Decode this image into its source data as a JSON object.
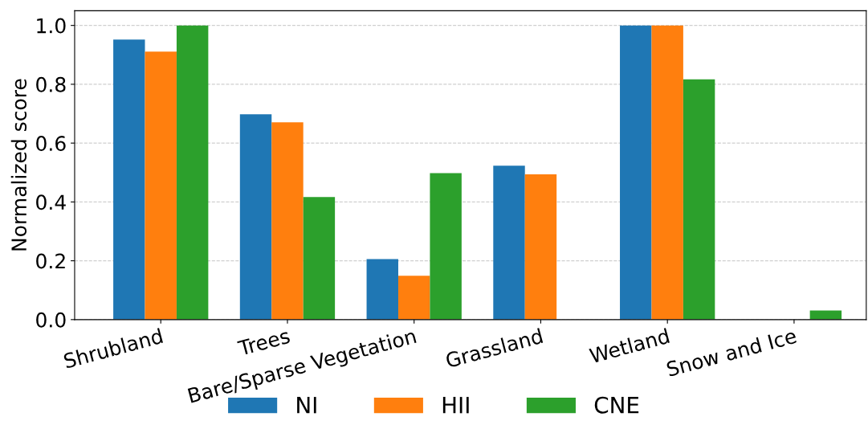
{
  "chart_data": {
    "type": "bar",
    "ylabel": "Normalized score",
    "categories": [
      "Shrubland",
      "Trees",
      "Bare/Sparse Vegetation",
      "Grassland",
      "Wetland",
      "Snow and Ice"
    ],
    "series": [
      {
        "name": "NI",
        "color": "#1f77b4",
        "values": [
          0.952,
          0.698,
          0.206,
          0.523,
          1.0,
          0
        ]
      },
      {
        "name": "HII",
        "color": "#ff7f0e",
        "values": [
          0.911,
          0.671,
          0.149,
          0.494,
          1.0,
          0
        ]
      },
      {
        "name": "CNE",
        "color": "#2ca02c",
        "values": [
          1.0,
          0.417,
          0.498,
          0,
          0.817,
          0.031
        ]
      }
    ],
    "ylim": [
      0,
      1.05
    ],
    "yticks": [
      {
        "value": 0,
        "label": "0.0"
      },
      0.2,
      0.4,
      0.6,
      0.8,
      {
        "value": 1,
        "label": "1.0"
      }
    ],
    "grid": "y",
    "legend": "bottom"
  }
}
